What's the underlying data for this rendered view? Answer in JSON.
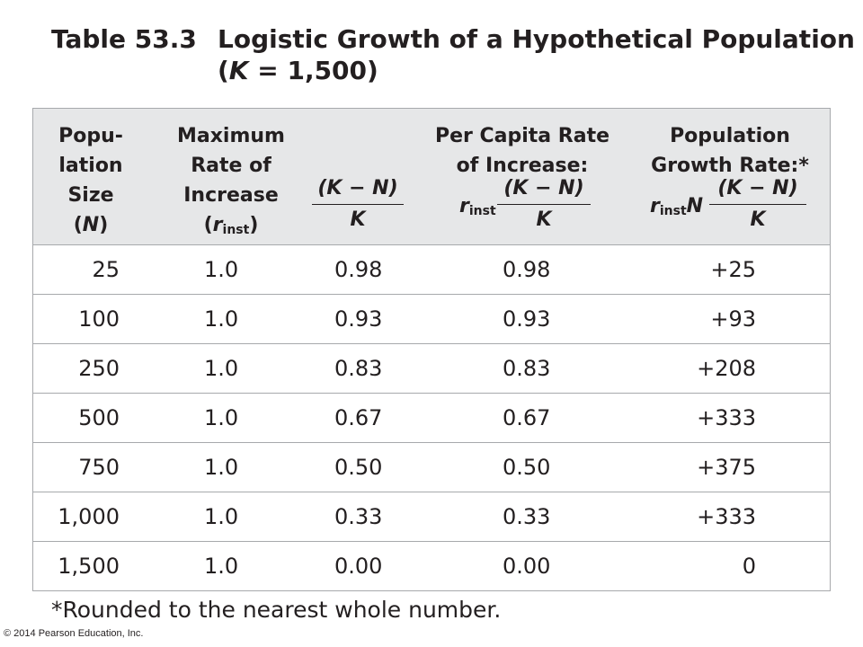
{
  "title": {
    "label": "Table 53.3",
    "text": "Logistic Growth of a Hypothetical Population",
    "sub_open": "(",
    "sub_var": "K",
    "sub_rest": " = 1,500)"
  },
  "header": {
    "col1": [
      "Popu-",
      "lation",
      "Size"
    ],
    "col1_var_open": "(",
    "col1_var": "N",
    "col1_var_close": ")",
    "col2": [
      "Maximum",
      "Rate of",
      "Increase"
    ],
    "col2_open": "(",
    "col2_r": "r",
    "col2_sub": "inst",
    "col2_close": ")",
    "col3_num": "(K − N)",
    "col3_den": "K",
    "col4": [
      "Per Capita Rate",
      "of Increase:"
    ],
    "col4_r": "r",
    "col4_sub": "inst",
    "col4_num": "(K − N)",
    "col4_den": "K",
    "col5": [
      "Population",
      "Growth Rate:*"
    ],
    "col5_r": "r",
    "col5_sub": "inst",
    "col5_N": "N",
    "col5_num": "(K − N)",
    "col5_den": "K"
  },
  "rows": [
    {
      "N": "25",
      "r": "1.0",
      "frac": "0.98",
      "per_capita": "0.98",
      "growth": "+25"
    },
    {
      "N": "100",
      "r": "1.0",
      "frac": "0.93",
      "per_capita": "0.93",
      "growth": "+93"
    },
    {
      "N": "250",
      "r": "1.0",
      "frac": "0.83",
      "per_capita": "0.83",
      "growth": "+208"
    },
    {
      "N": "500",
      "r": "1.0",
      "frac": "0.67",
      "per_capita": "0.67",
      "growth": "+333"
    },
    {
      "N": "750",
      "r": "1.0",
      "frac": "0.50",
      "per_capita": "0.50",
      "growth": "+375"
    },
    {
      "N": "1,000",
      "r": "1.0",
      "frac": "0.33",
      "per_capita": "0.33",
      "growth": "+333"
    },
    {
      "N": "1,500",
      "r": "1.0",
      "frac": "0.00",
      "per_capita": "0.00",
      "growth": "0"
    }
  ],
  "footnote": "*Rounded to the nearest whole number.",
  "copyright": "© 2014 Pearson Education, Inc."
}
